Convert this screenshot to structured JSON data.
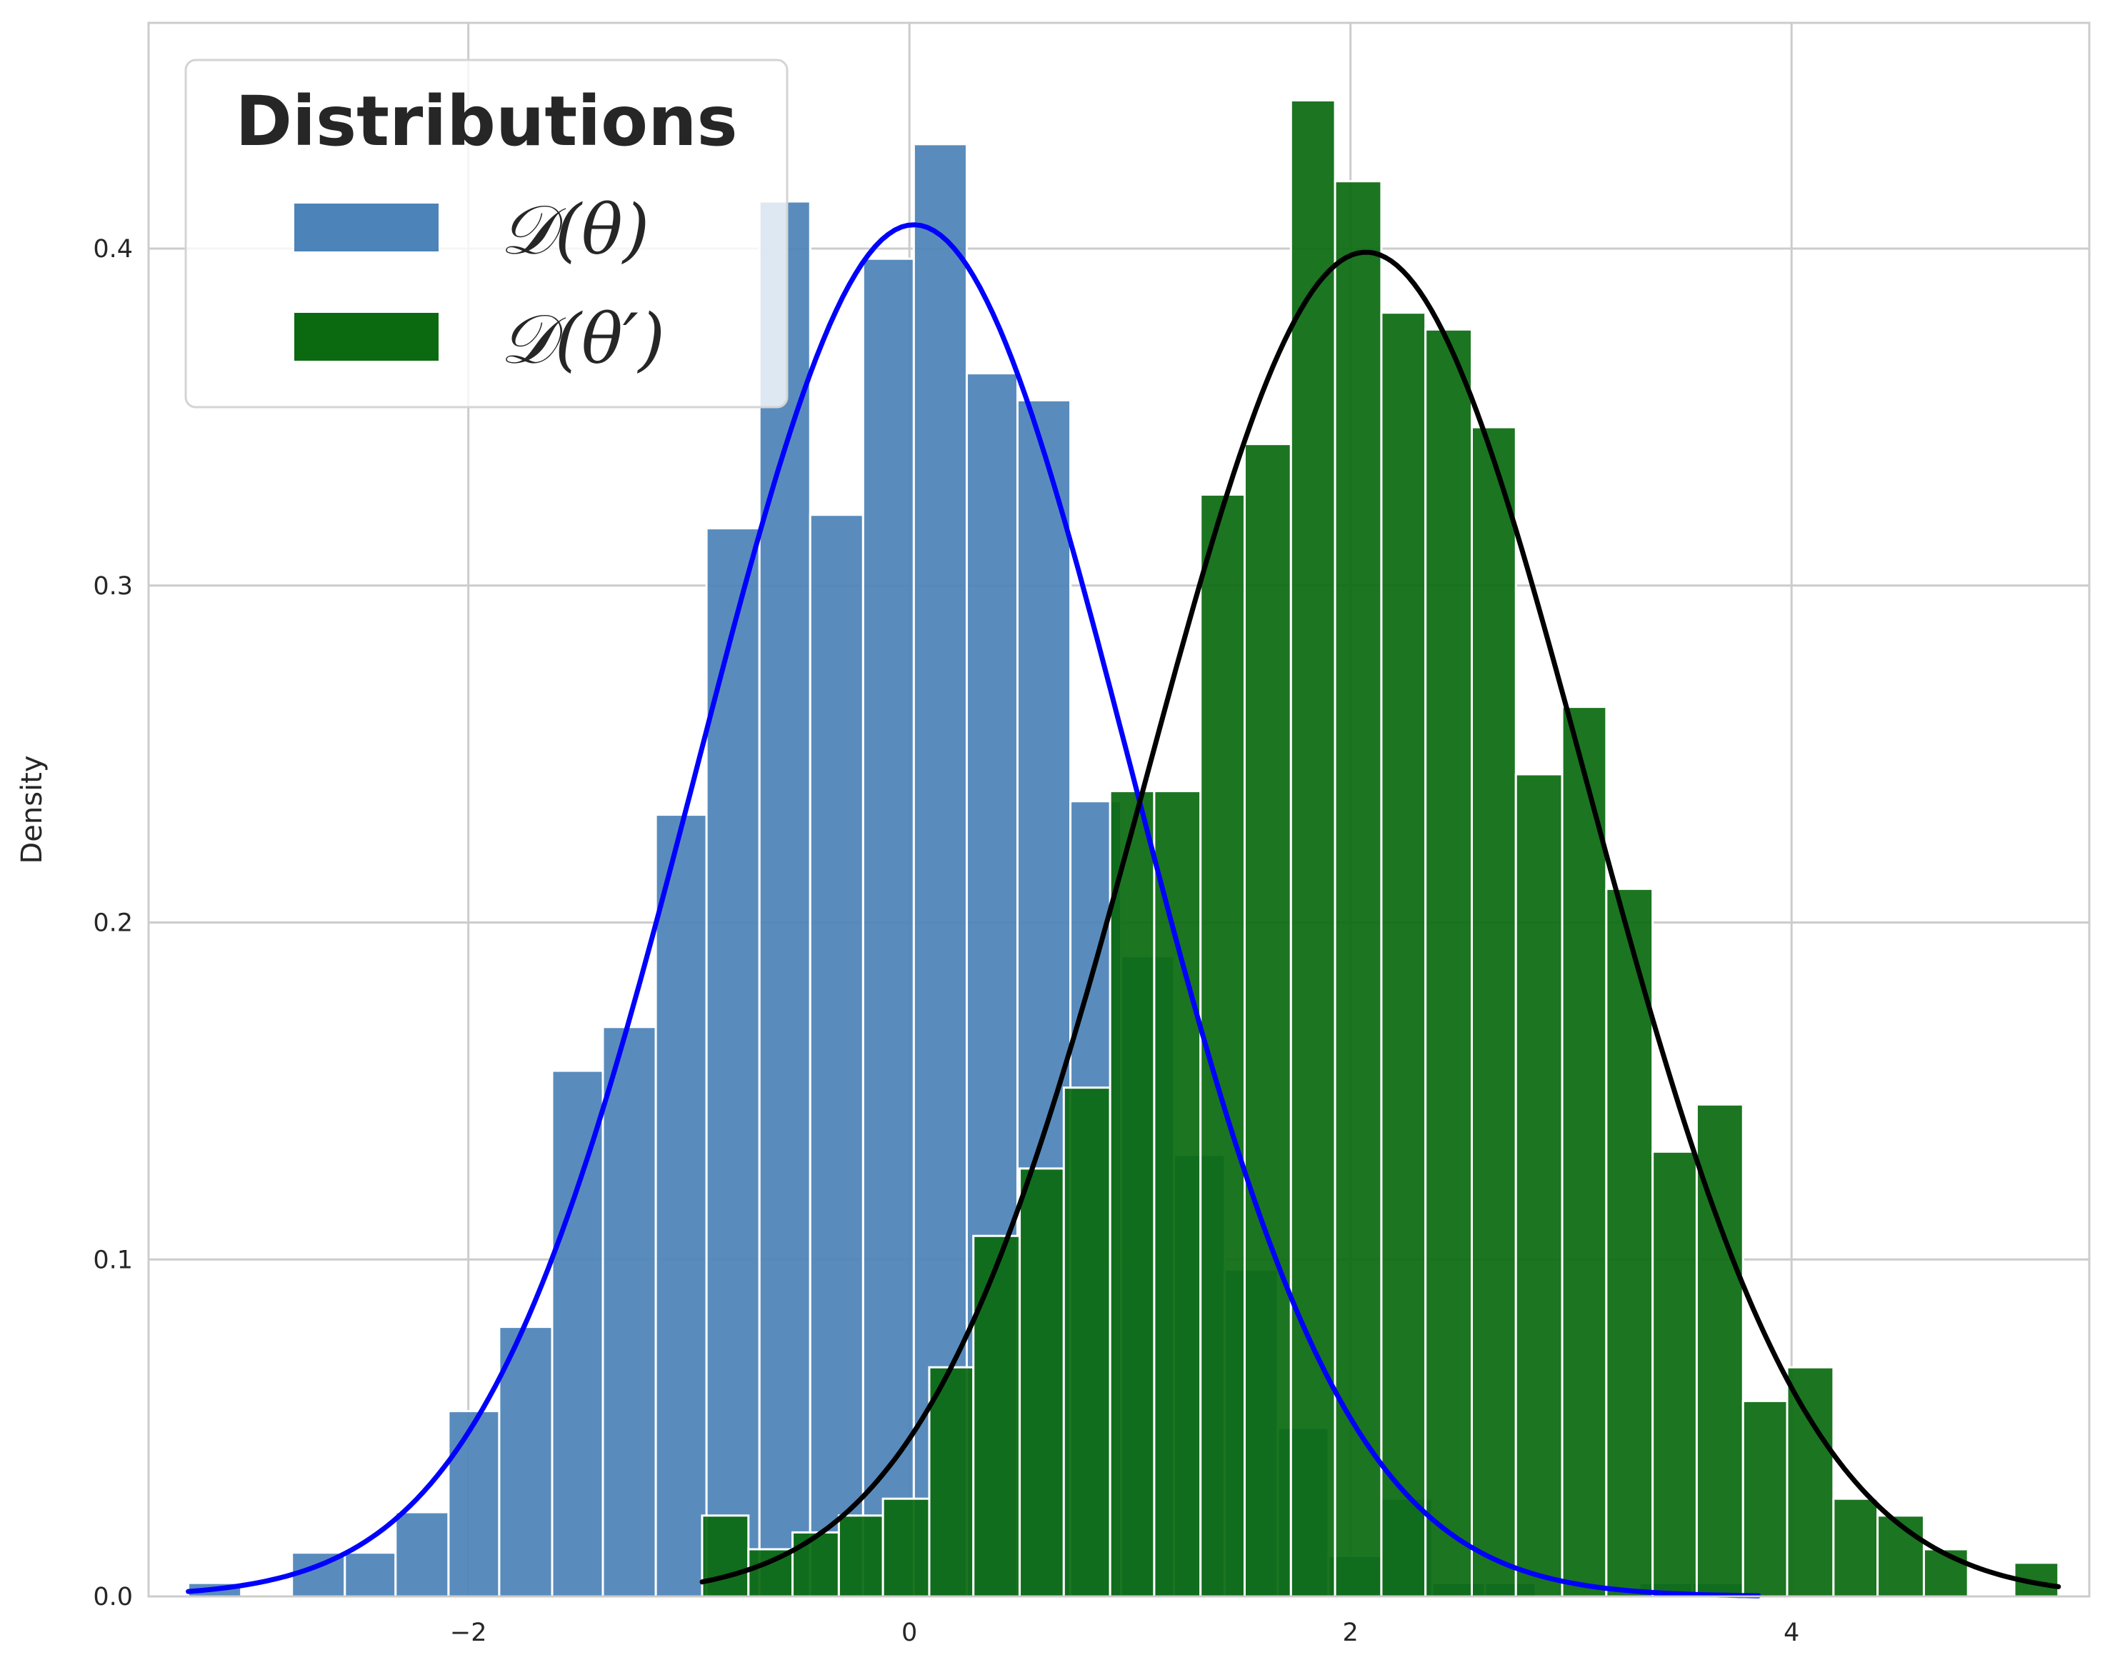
{
  "chart_data": {
    "type": "bar",
    "title": "",
    "xlabel": "",
    "ylabel": "Density",
    "xlim": [
      -3.45,
      5.35
    ],
    "ylim": [
      0,
      0.467
    ],
    "x_ticks": [
      -2,
      0,
      2,
      4
    ],
    "x_tick_labels": [
      "−2",
      "0",
      "2",
      "4"
    ],
    "y_ticks": [
      0.0,
      0.1,
      0.2,
      0.3,
      0.4
    ],
    "y_tick_labels": [
      "0.0",
      "0.1",
      "0.2",
      "0.3",
      "0.4"
    ],
    "grid": true,
    "legend": {
      "title": "Distributions",
      "placement": "top-left",
      "entries": [
        "𝒟(θ)",
        "𝒟(θ′)"
      ]
    },
    "series": [
      {
        "name": "𝒟(θ)",
        "kind": "histogram",
        "color": "#4c83b8",
        "bin_edges": [
          -3.27,
          -3.03,
          -2.8,
          -2.56,
          -2.33,
          -2.09,
          -1.86,
          -1.62,
          -1.39,
          -1.15,
          -0.92,
          -0.68,
          -0.45,
          -0.21,
          0.02,
          0.26,
          0.49,
          0.73,
          0.96,
          1.2,
          1.43,
          1.67,
          1.9,
          2.14,
          2.37,
          2.61,
          2.84,
          3.08,
          3.31,
          3.55,
          3.78
        ],
        "values": [
          0.004,
          0,
          0.013,
          0.013,
          0.025,
          0.055,
          0.08,
          0.156,
          0.169,
          0.232,
          0.317,
          0.414,
          0.321,
          0.397,
          0.431,
          0.363,
          0.355,
          0.236,
          0.19,
          0.131,
          0.097,
          0.05,
          0.012,
          0.029,
          0.004,
          0.004,
          0,
          0,
          0.004,
          0.004
        ]
      },
      {
        "name": "𝒟(θ′)",
        "kind": "histogram",
        "color": "#0b6a10",
        "bin_edges": [
          -0.94,
          -0.73,
          -0.53,
          -0.32,
          -0.12,
          0.09,
          0.29,
          0.5,
          0.7,
          0.91,
          1.11,
          1.32,
          1.52,
          1.73,
          1.93,
          2.14,
          2.34,
          2.55,
          2.75,
          2.96,
          3.16,
          3.37,
          3.57,
          3.78,
          3.98,
          4.19,
          4.39,
          4.6,
          4.8,
          5.01,
          5.21
        ],
        "values": [
          0.024,
          0.014,
          0.019,
          0.024,
          0.029,
          0.068,
          0.107,
          0.127,
          0.151,
          0.239,
          0.239,
          0.327,
          0.342,
          0.444,
          0.42,
          0.381,
          0.376,
          0.347,
          0.244,
          0.264,
          0.21,
          0.132,
          0.146,
          0.058,
          0.068,
          0.029,
          0.024,
          0.014,
          0,
          0.01
        ]
      },
      {
        "name": "normal-fit-theta",
        "kind": "line",
        "color": "#0000ff",
        "mean": 0.02,
        "std": 0.98,
        "x_range": [
          -3.27,
          3.85
        ]
      },
      {
        "name": "normal-fit-theta-prime",
        "kind": "line",
        "color": "#000000",
        "mean": 2.07,
        "std": 1.0,
        "x_range": [
          -0.94,
          5.21
        ]
      }
    ]
  }
}
